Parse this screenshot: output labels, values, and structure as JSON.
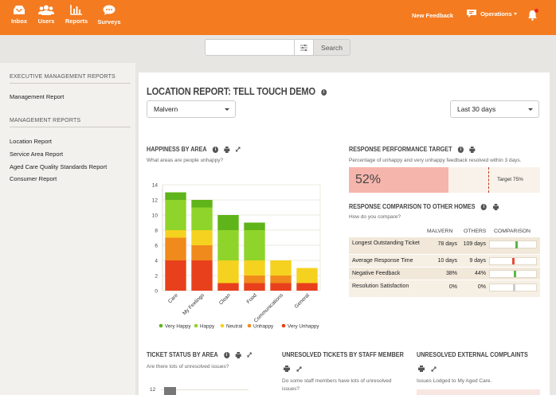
{
  "nav": {
    "items": [
      {
        "label": "Inbox",
        "icon": "inbox-icon"
      },
      {
        "label": "Users",
        "icon": "users-icon"
      },
      {
        "label": "Reports",
        "icon": "reports-icon"
      },
      {
        "label": "Surveys",
        "icon": "surveys-icon"
      }
    ],
    "new_feedback": "New Feedback",
    "operations": "Operations",
    "brand_color": "#f47b20"
  },
  "search": {
    "placeholder": "",
    "button_label": "Search"
  },
  "sidebar": {
    "sections": [
      {
        "heading": "EXECUTIVE MANAGEMENT REPORTS",
        "links": [
          "Management Report"
        ]
      },
      {
        "heading": "MANAGEMENT REPORTS",
        "links": [
          "Location Report",
          "Service Area Report",
          "Aged Care Quality Standards Report",
          "Consumer Report"
        ]
      }
    ]
  },
  "main": {
    "title": "LOCATION REPORT: TELL TOUCH DEMO",
    "location_select": "Malvern",
    "period_select": "Last 30 days",
    "happiness": {
      "title": "HAPPINESS BY AREA",
      "subtitle": "What areas are people unhappy?"
    },
    "performance": {
      "title": "RESPONSE PERFORMANCE TARGET",
      "subtitle": "Percentage of unhappy and very unhappy feedback resolved within 3 days.",
      "value_label": "52%",
      "value": 52,
      "target_label": "Target 75%",
      "target": 75
    },
    "comparison": {
      "title": "RESPONSE COMPARISON TO OTHER HOMES",
      "subtitle": "How do you compare?",
      "headers": [
        "MALVERN",
        "OTHERS",
        "COMPARISON"
      ],
      "rows": [
        {
          "label": "Longest Outstanding Ticket",
          "malvern": "78 days",
          "others": "109 days",
          "marker": 0.55,
          "color": "#57b846"
        },
        {
          "label": "Average Response Time",
          "malvern": "10 days",
          "others": "9 days",
          "marker": 0.48,
          "color": "#e74c3c"
        },
        {
          "label": "Negative Feedback",
          "malvern": "38%",
          "others": "44%",
          "marker": 0.52,
          "color": "#57b846"
        },
        {
          "label": "Resolution Satisfaction",
          "malvern": "0%",
          "others": "0%",
          "marker": 0.5,
          "color": "#cccccc"
        }
      ]
    },
    "ticket_status": {
      "title": "TICKET STATUS BY AREA",
      "subtitle": "Are there lots of unresolved issues?",
      "y_tick": "12"
    },
    "unresolved_staff": {
      "title": "UNRESOLVED TICKETS BY STAFF MEMBER",
      "subtitle_1": "Do some staff members have lots of unresolved",
      "subtitle_2": "issues?"
    },
    "complaints": {
      "title": "UNRESOLVED EXTERNAL COMPLAINTS",
      "subtitle": "Issues Lodged to My Aged Care."
    }
  },
  "chart_data": {
    "type": "bar",
    "stacked": true,
    "categories": [
      "Care",
      "My Feelings",
      "Clean",
      "Food",
      "Communications",
      "General"
    ],
    "series": [
      {
        "name": "Very Unhappy",
        "color": "#e8401c",
        "values": [
          4,
          4,
          1,
          1,
          1,
          1
        ]
      },
      {
        "name": "Unhappy",
        "color": "#f08a1c",
        "values": [
          3,
          2,
          0,
          1,
          1,
          0
        ]
      },
      {
        "name": "Neutral",
        "color": "#f5d21f",
        "values": [
          1,
          2,
          3,
          2,
          2,
          2
        ]
      },
      {
        "name": "Happy",
        "color": "#8fd42a",
        "values": [
          4,
          3,
          4,
          4,
          0,
          0
        ]
      },
      {
        "name": "Very Happy",
        "color": "#5fb41a",
        "values": [
          1,
          1,
          2,
          1,
          0,
          0
        ]
      }
    ],
    "legend_order": [
      "Very Happy",
      "Happy",
      "Neutral",
      "Unhappy",
      "Very Unhappy"
    ],
    "yticks": [
      "0",
      "2",
      "4",
      "6",
      "8",
      "10",
      "12",
      "14"
    ],
    "ylim": [
      0,
      14
    ],
    "grid": true,
    "legend": "bottom"
  }
}
